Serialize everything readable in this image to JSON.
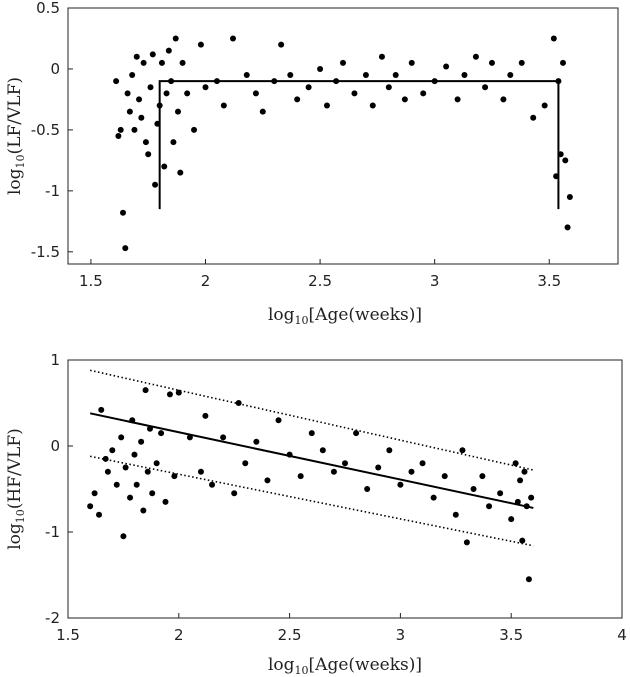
{
  "chart_data": [
    {
      "type": "scatter",
      "title": "",
      "xlabel": "log10[Age(weeks)]",
      "ylabel": "log10(LF/VLF)",
      "xlim": [
        1.4,
        3.8
      ],
      "ylim": [
        -1.6,
        0.5
      ],
      "xticks": [
        1.5,
        2,
        2.5,
        3,
        3.5
      ],
      "yticks": [
        -1.5,
        -1,
        -0.5,
        0,
        0.5
      ],
      "xtick_labels": [
        "1.5",
        "2",
        "2.5",
        "3",
        "3.5"
      ],
      "ytick_labels": [
        "-1.5",
        "-1",
        "-0.5",
        "0",
        "0.5"
      ],
      "grid": false,
      "points": [
        [
          1.61,
          -0.1
        ],
        [
          1.62,
          -0.55
        ],
        [
          1.63,
          -0.5
        ],
        [
          1.64,
          -1.18
        ],
        [
          1.65,
          -1.47
        ],
        [
          1.66,
          -0.2
        ],
        [
          1.67,
          -0.35
        ],
        [
          1.68,
          -0.05
        ],
        [
          1.69,
          -0.5
        ],
        [
          1.7,
          0.1
        ],
        [
          1.71,
          -0.25
        ],
        [
          1.72,
          -0.4
        ],
        [
          1.73,
          0.05
        ],
        [
          1.74,
          -0.6
        ],
        [
          1.75,
          -0.7
        ],
        [
          1.76,
          -0.15
        ],
        [
          1.77,
          0.12
        ],
        [
          1.78,
          -0.95
        ],
        [
          1.79,
          -0.45
        ],
        [
          1.8,
          -0.3
        ],
        [
          1.81,
          0.05
        ],
        [
          1.82,
          -0.8
        ],
        [
          1.83,
          -0.2
        ],
        [
          1.84,
          0.15
        ],
        [
          1.85,
          -0.1
        ],
        [
          1.86,
          -0.6
        ],
        [
          1.87,
          0.25
        ],
        [
          1.88,
          -0.35
        ],
        [
          1.89,
          -0.85
        ],
        [
          1.9,
          0.05
        ],
        [
          1.92,
          -0.2
        ],
        [
          1.95,
          -0.5
        ],
        [
          1.98,
          0.2
        ],
        [
          2.0,
          -0.15
        ],
        [
          2.05,
          -0.1
        ],
        [
          2.08,
          -0.3
        ],
        [
          2.12,
          0.25
        ],
        [
          2.18,
          -0.05
        ],
        [
          2.22,
          -0.2
        ],
        [
          2.25,
          -0.35
        ],
        [
          2.3,
          -0.1
        ],
        [
          2.33,
          0.2
        ],
        [
          2.37,
          -0.05
        ],
        [
          2.4,
          -0.25
        ],
        [
          2.45,
          -0.15
        ],
        [
          2.5,
          0.0
        ],
        [
          2.53,
          -0.3
        ],
        [
          2.57,
          -0.1
        ],
        [
          2.6,
          0.05
        ],
        [
          2.65,
          -0.2
        ],
        [
          2.7,
          -0.05
        ],
        [
          2.73,
          -0.3
        ],
        [
          2.77,
          0.1
        ],
        [
          2.8,
          -0.15
        ],
        [
          2.83,
          -0.05
        ],
        [
          2.87,
          -0.25
        ],
        [
          2.9,
          0.05
        ],
        [
          2.95,
          -0.2
        ],
        [
          3.0,
          -0.1
        ],
        [
          3.05,
          0.02
        ],
        [
          3.1,
          -0.25
        ],
        [
          3.13,
          -0.05
        ],
        [
          3.18,
          0.1
        ],
        [
          3.22,
          -0.15
        ],
        [
          3.25,
          0.05
        ],
        [
          3.3,
          -0.25
        ],
        [
          3.33,
          -0.05
        ],
        [
          3.38,
          0.05
        ],
        [
          3.43,
          -0.4
        ],
        [
          3.48,
          -0.3
        ],
        [
          3.52,
          0.25
        ],
        [
          3.53,
          -0.88
        ],
        [
          3.54,
          -0.1
        ],
        [
          3.55,
          -0.7
        ],
        [
          3.56,
          0.05
        ],
        [
          3.57,
          -0.75
        ],
        [
          3.58,
          -1.3
        ],
        [
          3.59,
          -1.05
        ]
      ],
      "annotation_lines": [
        {
          "style": "solid",
          "points": [
            [
              1.8,
              -1.15
            ],
            [
              1.8,
              -0.1
            ],
            [
              3.54,
              -0.1
            ],
            [
              3.54,
              -1.15
            ]
          ]
        }
      ]
    },
    {
      "type": "scatter",
      "title": "",
      "xlabel": "log10[Age(weeks)]",
      "ylabel": "log10(HF/VLF)",
      "xlim": [
        1.5,
        4
      ],
      "ylim": [
        -2,
        1
      ],
      "xticks": [
        1.5,
        2,
        2.5,
        3,
        3.5,
        4
      ],
      "yticks": [
        -2,
        -1,
        0,
        1
      ],
      "xtick_labels": [
        "1.5",
        "2",
        "2.5",
        "3",
        "3.5",
        "4"
      ],
      "ytick_labels": [
        "-2",
        "-1",
        "0",
        "1"
      ],
      "grid": false,
      "points": [
        [
          1.6,
          -0.7
        ],
        [
          1.62,
          -0.55
        ],
        [
          1.64,
          -0.8
        ],
        [
          1.65,
          0.42
        ],
        [
          1.67,
          -0.15
        ],
        [
          1.68,
          -0.3
        ],
        [
          1.7,
          -0.05
        ],
        [
          1.72,
          -0.45
        ],
        [
          1.74,
          0.1
        ],
        [
          1.75,
          -1.05
        ],
        [
          1.76,
          -0.25
        ],
        [
          1.78,
          -0.6
        ],
        [
          1.79,
          0.3
        ],
        [
          1.8,
          -0.1
        ],
        [
          1.81,
          -0.45
        ],
        [
          1.83,
          0.05
        ],
        [
          1.84,
          -0.75
        ],
        [
          1.85,
          0.65
        ],
        [
          1.86,
          -0.3
        ],
        [
          1.87,
          0.2
        ],
        [
          1.88,
          -0.55
        ],
        [
          1.9,
          -0.2
        ],
        [
          1.92,
          0.15
        ],
        [
          1.94,
          -0.65
        ],
        [
          1.96,
          0.6
        ],
        [
          1.98,
          -0.35
        ],
        [
          2.0,
          0.62
        ],
        [
          2.05,
          0.1
        ],
        [
          2.1,
          -0.3
        ],
        [
          2.12,
          0.35
        ],
        [
          2.15,
          -0.45
        ],
        [
          2.2,
          0.1
        ],
        [
          2.25,
          -0.55
        ],
        [
          2.27,
          0.5
        ],
        [
          2.3,
          -0.2
        ],
        [
          2.35,
          0.05
        ],
        [
          2.4,
          -0.4
        ],
        [
          2.45,
          0.3
        ],
        [
          2.5,
          -0.1
        ],
        [
          2.55,
          -0.35
        ],
        [
          2.6,
          0.15
        ],
        [
          2.65,
          -0.05
        ],
        [
          2.7,
          -0.3
        ],
        [
          2.75,
          -0.2
        ],
        [
          2.8,
          0.15
        ],
        [
          2.85,
          -0.5
        ],
        [
          2.9,
          -0.25
        ],
        [
          2.95,
          -0.05
        ],
        [
          3.0,
          -0.45
        ],
        [
          3.05,
          -0.3
        ],
        [
          3.1,
          -0.2
        ],
        [
          3.15,
          -0.6
        ],
        [
          3.2,
          -0.35
        ],
        [
          3.25,
          -0.8
        ],
        [
          3.28,
          -0.05
        ],
        [
          3.3,
          -1.12
        ],
        [
          3.33,
          -0.5
        ],
        [
          3.37,
          -0.35
        ],
        [
          3.4,
          -0.7
        ],
        [
          3.45,
          -0.55
        ],
        [
          3.5,
          -0.85
        ],
        [
          3.52,
          -0.2
        ],
        [
          3.53,
          -0.65
        ],
        [
          3.54,
          -0.4
        ],
        [
          3.55,
          -1.1
        ],
        [
          3.56,
          -0.3
        ],
        [
          3.57,
          -0.7
        ],
        [
          3.58,
          -1.55
        ],
        [
          3.59,
          -0.6
        ]
      ],
      "fit_line": {
        "style": "solid",
        "points": [
          [
            1.6,
            0.38
          ],
          [
            3.6,
            -0.72
          ]
        ]
      },
      "bounds": [
        {
          "style": "dotted",
          "points": [
            [
              1.6,
              0.88
            ],
            [
              3.6,
              -0.28
            ]
          ]
        },
        {
          "style": "dotted",
          "points": [
            [
              1.6,
              -0.12
            ],
            [
              3.6,
              -1.16
            ]
          ]
        }
      ]
    }
  ]
}
